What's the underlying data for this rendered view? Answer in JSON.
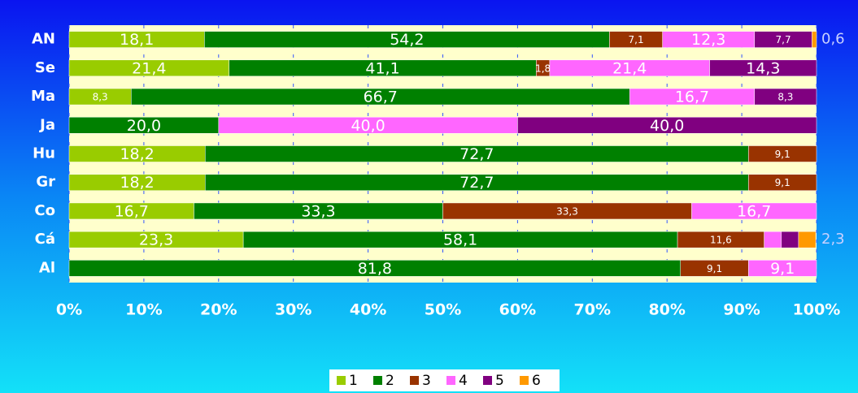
{
  "chart_data": {
    "type": "stacked-barh",
    "categories": [
      "AN",
      "Se",
      "Ma",
      "Ja",
      "Hu",
      "Gr",
      "Co",
      "Cá",
      "Al"
    ],
    "series": [
      {
        "name": "1",
        "color": "#99cc00",
        "values": [
          18.1,
          21.4,
          8.3,
          null,
          18.2,
          18.2,
          16.7,
          23.3,
          null
        ],
        "value_labels": [
          "18,1",
          "21,4",
          "8,3",
          null,
          "18,2",
          "18,2",
          "16,7",
          "23,3",
          null
        ]
      },
      {
        "name": "2",
        "color": "#008000",
        "values": [
          54.2,
          41.1,
          66.7,
          20.0,
          72.7,
          72.7,
          33.3,
          58.1,
          81.8
        ],
        "value_labels": [
          "54,2",
          "41,1",
          "66,7",
          "20,0",
          "72,7",
          "72,7",
          "33,3",
          "58,1",
          "81,8"
        ]
      },
      {
        "name": "3",
        "color": "#993300",
        "values": [
          7.1,
          1.8,
          null,
          null,
          9.1,
          9.1,
          33.3,
          11.6,
          9.1
        ],
        "value_labels": [
          "7,1",
          "1,8",
          null,
          null,
          "9,1",
          "9,1",
          "33,3",
          "11,6",
          "9,1"
        ]
      },
      {
        "name": "4",
        "color": "#ff66ff",
        "values": [
          12.3,
          21.4,
          16.7,
          40.0,
          null,
          null,
          16.7,
          2.3,
          9.1
        ],
        "value_labels": [
          "12,3",
          "21,4",
          "16,7",
          "40,0",
          null,
          null,
          "16,7",
          null,
          "9,1"
        ]
      },
      {
        "name": "5",
        "color": "#800080",
        "values": [
          7.7,
          14.3,
          8.3,
          40.0,
          null,
          null,
          null,
          2.3,
          null
        ],
        "value_labels": [
          "7,7",
          "14,3",
          "8,3",
          "40,0",
          null,
          null,
          null,
          null,
          null
        ]
      },
      {
        "name": "6",
        "color": "#ff9900",
        "values": [
          0.6,
          null,
          null,
          null,
          null,
          null,
          null,
          2.3,
          null
        ],
        "value_labels": [
          "0,6",
          null,
          null,
          null,
          null,
          null,
          null,
          "2,3",
          null
        ]
      }
    ],
    "xlim": [
      0,
      100
    ],
    "xticks": [
      {
        "value": 0,
        "label": "0%"
      },
      {
        "value": 10,
        "label": "10%"
      },
      {
        "value": 20,
        "label": "20%"
      },
      {
        "value": 30,
        "label": "30%"
      },
      {
        "value": 40,
        "label": "40%"
      },
      {
        "value": 50,
        "label": "50%"
      },
      {
        "value": 60,
        "label": "60%"
      },
      {
        "value": 70,
        "label": "70%"
      },
      {
        "value": 80,
        "label": "80%"
      },
      {
        "value": 90,
        "label": "90%"
      },
      {
        "value": 100,
        "label": "100%"
      }
    ],
    "legend": "bottom"
  }
}
